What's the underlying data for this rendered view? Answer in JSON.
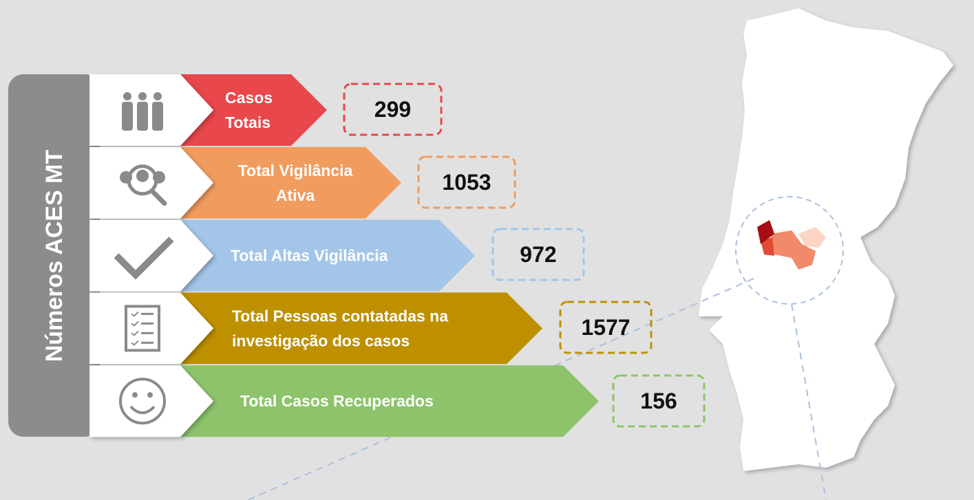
{
  "side_title": "Números ACES MT",
  "rows": [
    {
      "icon": "people-group-icon",
      "label_lines": [
        "Casos",
        "Totais"
      ],
      "value": "299",
      "color": "#e8474c"
    },
    {
      "icon": "people-search-icon",
      "label_lines": [
        "Total Vigilância",
        "Ativa"
      ],
      "value": "1053",
      "color": "#f09c5f"
    },
    {
      "icon": "checkmark-icon",
      "label_lines": [
        "Total Altas Vigilância"
      ],
      "value": "972",
      "color": "#a3c5e7"
    },
    {
      "icon": "checklist-icon",
      "label_lines": [
        "Total Pessoas contatadas na",
        "investigação dos casos"
      ],
      "value": "1577",
      "color": "#be9000"
    },
    {
      "icon": "smiley-icon",
      "label_lines": [
        "Total Casos Recuperados"
      ],
      "value": "156",
      "color": "#8dc36b"
    }
  ],
  "map": {
    "region_colors": [
      "#a50f15",
      "#e34a33",
      "#f08a6a",
      "#fcd5c4"
    ]
  }
}
